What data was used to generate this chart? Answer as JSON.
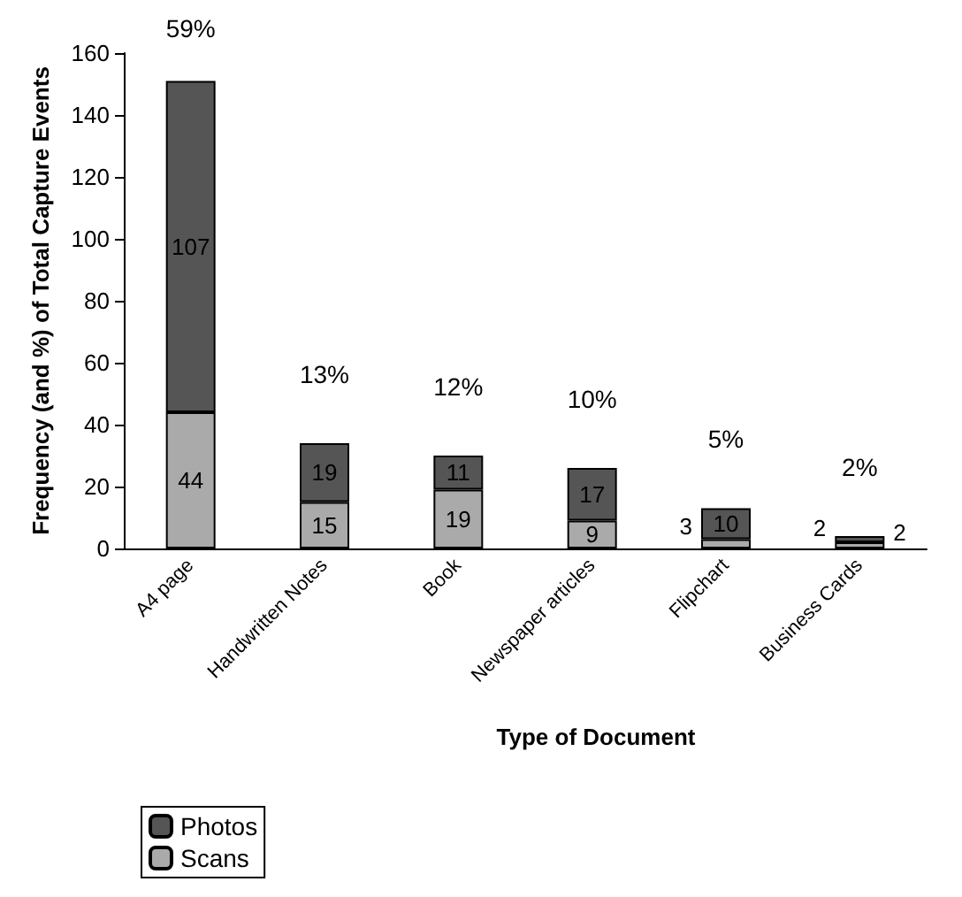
{
  "chart_data": {
    "type": "bar",
    "stacked": true,
    "xlabel": "Type of Document",
    "ylabel": "Frequency (and %) of Total Capture Events",
    "categories": [
      "A4 page",
      "Handwritten Notes",
      "Book",
      "Newspaper articles",
      "Flipchart",
      "Business Cards"
    ],
    "series": [
      {
        "name": "Scans",
        "color": "#aaaaaa",
        "values": [
          44,
          15,
          19,
          9,
          3,
          2
        ]
      },
      {
        "name": "Photos",
        "color": "#555555",
        "values": [
          107,
          19,
          11,
          17,
          10,
          2
        ]
      }
    ],
    "annotations": [
      {
        "text": "59%",
        "x": "A4 page",
        "y": 151
      },
      {
        "text": "13%",
        "x": "Handwritten Notes",
        "y": 34
      },
      {
        "text": "12%",
        "x": "Book",
        "y": 30
      },
      {
        "text": "10%",
        "x": "Newspaper articles",
        "y": 26
      },
      {
        "text": "5%",
        "x": "Flipchart",
        "y": 13
      },
      {
        "text": "2%",
        "x": "Business Cards",
        "y": 4
      }
    ],
    "data_labels": true,
    "ylim": [
      0,
      160
    ],
    "yticks": [
      0,
      20,
      40,
      60,
      80,
      100,
      120,
      140,
      160
    ],
    "grid": false,
    "legend": "bottom left"
  }
}
